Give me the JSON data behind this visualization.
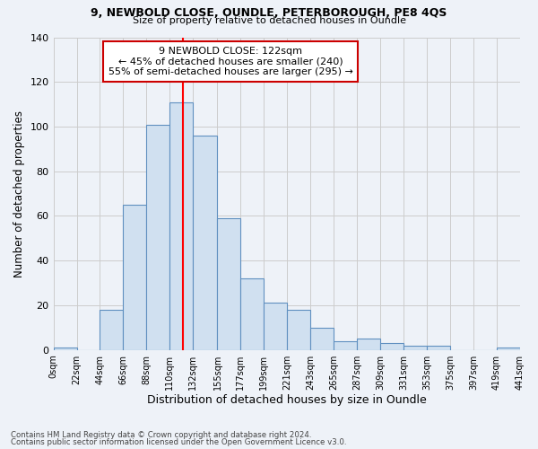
{
  "title1": "9, NEWBOLD CLOSE, OUNDLE, PETERBOROUGH, PE8 4QS",
  "title2": "Size of property relative to detached houses in Oundle",
  "xlabel": "Distribution of detached houses by size in Oundle",
  "ylabel": "Number of detached properties",
  "footnote1": "Contains HM Land Registry data © Crown copyright and database right 2024.",
  "footnote2": "Contains public sector information licensed under the Open Government Licence v3.0.",
  "annotation_line1": "9 NEWBOLD CLOSE: 122sqm",
  "annotation_line2": "← 45% of detached houses are smaller (240)",
  "annotation_line3": "55% of semi-detached houses are larger (295) →",
  "property_size": 122,
  "bar_color": "#d0e0f0",
  "bar_edge_color": "#6090c0",
  "vline_color": "red",
  "bins": [
    0,
    22,
    44,
    66,
    88,
    110,
    132,
    155,
    177,
    199,
    221,
    243,
    265,
    287,
    309,
    331,
    353,
    375,
    397,
    419,
    441
  ],
  "bin_labels": [
    "0sqm",
    "22sqm",
    "44sqm",
    "66sqm",
    "88sqm",
    "110sqm",
    "132sqm",
    "155sqm",
    "177sqm",
    "199sqm",
    "221sqm",
    "243sqm",
    "265sqm",
    "287sqm",
    "309sqm",
    "331sqm",
    "353sqm",
    "375sqm",
    "397sqm",
    "419sqm",
    "441sqm"
  ],
  "counts": [
    1,
    0,
    18,
    65,
    101,
    111,
    96,
    59,
    32,
    21,
    18,
    10,
    4,
    5,
    3,
    2,
    2,
    0,
    0,
    1
  ],
  "ylim": [
    0,
    140
  ],
  "yticks": [
    0,
    20,
    40,
    60,
    80,
    100,
    120,
    140
  ],
  "background_color": "#eef2f8",
  "grid_color": "#cccccc",
  "annotation_box_color": "white",
  "annotation_box_edge": "#cc0000"
}
